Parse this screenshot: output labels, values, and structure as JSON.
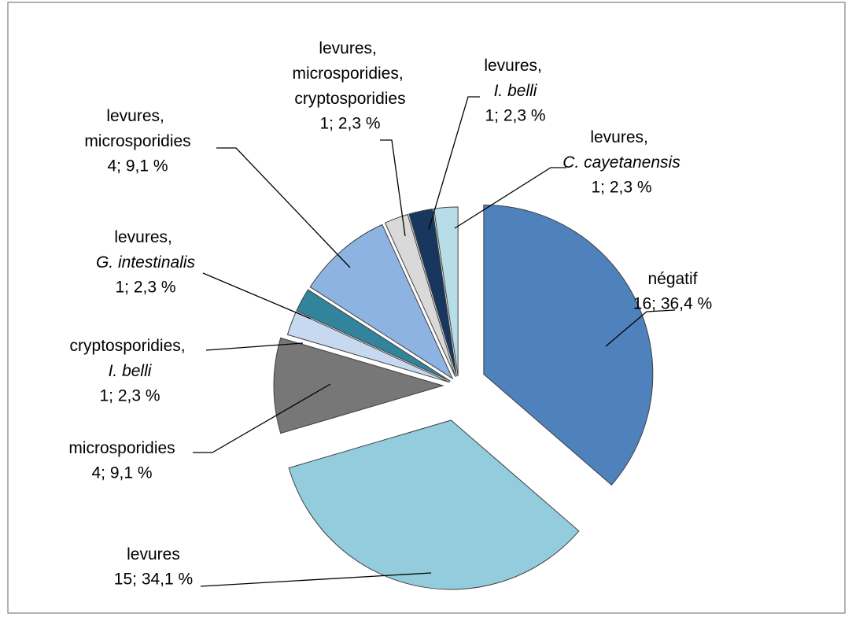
{
  "chart_data": {
    "type": "pie",
    "categories": [
      "négatif",
      "levures",
      "microsporidies",
      "cryptosporidies, I. belli",
      "levures, G. intestinalis",
      "levures, microsporidies",
      "levures, microsporidies, cryptosporidies",
      "levures, I. belli",
      "levures, C. cayetanensis"
    ],
    "values": [
      16,
      15,
      4,
      1,
      1,
      4,
      1,
      1,
      1
    ],
    "value_labels": [
      "16; 36,4 %",
      "15; 34,1 %",
      "4; 9,1 %",
      "1; 2,3 %",
      "1; 2,3 %",
      "4; 9,1 %",
      "1; 2,3 %",
      "1; 2,3 %",
      "1; 2,3 %"
    ],
    "colors": [
      "#4f81bd",
      "#93cddd",
      "#777777",
      "#c6d9f1",
      "#31849b",
      "#8db3e2",
      "#d9d9d9",
      "#17375e",
      "#b7dee8"
    ]
  }
}
